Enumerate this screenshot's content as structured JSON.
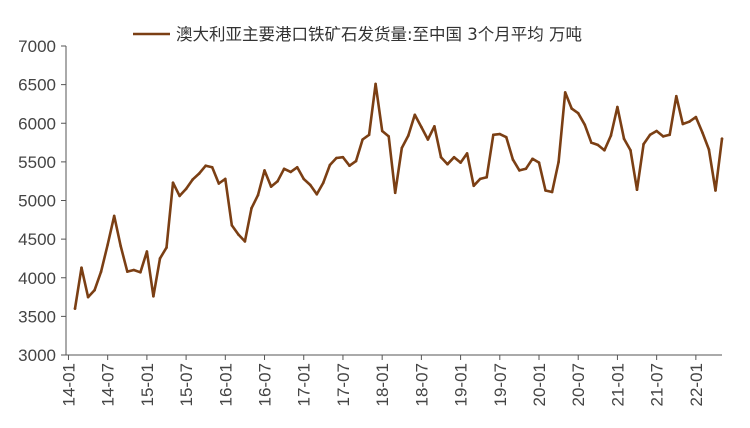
{
  "chart_data": {
    "type": "line",
    "title": "",
    "xlabel": "",
    "ylabel": "",
    "ylim": [
      3000,
      7000
    ],
    "yticks": [
      "3000",
      "3500",
      "4000",
      "4500",
      "5000",
      "5500",
      "6000",
      "6500",
      "7000"
    ],
    "xticks": [
      "14-01",
      "14-07",
      "15-01",
      "15-07",
      "16-01",
      "16-07",
      "17-01",
      "17-07",
      "18-01",
      "18-07",
      "19-01",
      "19-07",
      "20-01",
      "20-07",
      "21-01",
      "21-07",
      "22-01"
    ],
    "grid": false,
    "legend_position": "top",
    "colors": {
      "series": "#7B3F14",
      "axis": "#555555"
    },
    "series": [
      {
        "name": "澳大利亚主要港口铁矿石发货量:至中国 3个月平均 万吨",
        "x": [
          "2014-02",
          "2014-03",
          "2014-04",
          "2014-05",
          "2014-06",
          "2014-07",
          "2014-08",
          "2014-09",
          "2014-10",
          "2014-11",
          "2014-12",
          "2015-01",
          "2015-02",
          "2015-03",
          "2015-04",
          "2015-05",
          "2015-06",
          "2015-07",
          "2015-08",
          "2015-09",
          "2015-10",
          "2015-11",
          "2015-12",
          "2016-01",
          "2016-02",
          "2016-03",
          "2016-04",
          "2016-05",
          "2016-06",
          "2016-07",
          "2016-08",
          "2016-09",
          "2016-10",
          "2016-11",
          "2016-12",
          "2017-01",
          "2017-02",
          "2017-03",
          "2017-04",
          "2017-05",
          "2017-06",
          "2017-07",
          "2017-08",
          "2017-09",
          "2017-10",
          "2017-11",
          "2017-12",
          "2018-01",
          "2018-02",
          "2018-03",
          "2018-04",
          "2018-05",
          "2018-06",
          "2018-07",
          "2018-08",
          "2018-09",
          "2018-10",
          "2018-11",
          "2018-12",
          "2019-01",
          "2019-02",
          "2019-03",
          "2019-04",
          "2019-05",
          "2019-06",
          "2019-07",
          "2019-08",
          "2019-09",
          "2019-10",
          "2019-11",
          "2019-12",
          "2020-01",
          "2020-02",
          "2020-03",
          "2020-04",
          "2020-05",
          "2020-06",
          "2020-07",
          "2020-08",
          "2020-09",
          "2020-10",
          "2020-11",
          "2020-12",
          "2021-01",
          "2021-02",
          "2021-03",
          "2021-04",
          "2021-05",
          "2021-06",
          "2021-07",
          "2021-08",
          "2021-09",
          "2021-10",
          "2021-11",
          "2021-12",
          "2022-01",
          "2022-02",
          "2022-03",
          "2022-04",
          "2022-05"
        ],
        "values": [
          3600,
          4130,
          3750,
          3840,
          4080,
          4430,
          4800,
          4410,
          4080,
          4100,
          4070,
          4340,
          3760,
          4250,
          4390,
          5230,
          5060,
          5150,
          5270,
          5350,
          5450,
          5430,
          5220,
          5280,
          4680,
          4560,
          4470,
          4900,
          5070,
          5390,
          5180,
          5250,
          5410,
          5370,
          5430,
          5280,
          5200,
          5080,
          5230,
          5460,
          5550,
          5560,
          5450,
          5510,
          5790,
          5850,
          6510,
          5900,
          5830,
          5100,
          5680,
          5840,
          6110,
          5950,
          5790,
          5960,
          5560,
          5470,
          5560,
          5490,
          5610,
          5190,
          5280,
          5300,
          5850,
          5860,
          5820,
          5530,
          5390,
          5410,
          5540,
          5490,
          5130,
          5110,
          5500,
          6400,
          6190,
          6130,
          5980,
          5750,
          5720,
          5650,
          5840,
          6210,
          5800,
          5650,
          5140,
          5730,
          5850,
          5900,
          5830,
          5850,
          6350,
          5990,
          6020,
          6080,
          5880,
          5660,
          5130,
          5800
        ]
      }
    ]
  }
}
